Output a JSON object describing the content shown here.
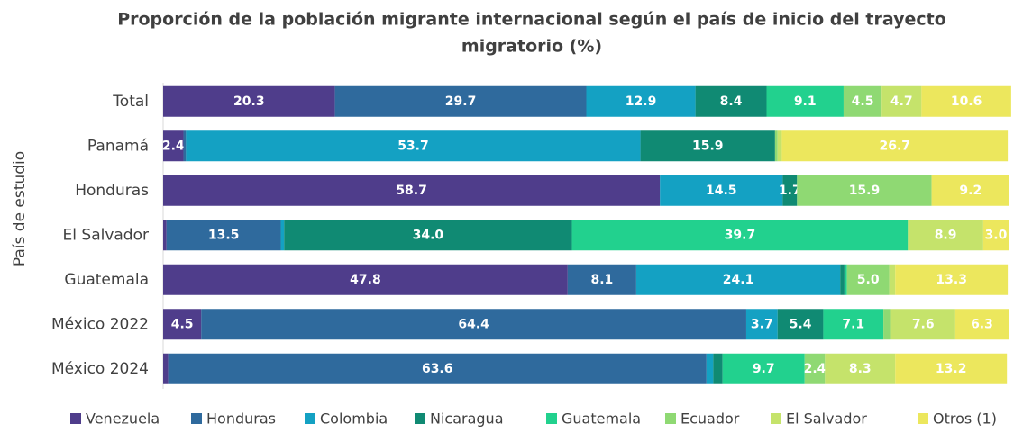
{
  "chart_data": {
    "type": "stacked_barh",
    "title": [
      "Proporción de la población migrante internacional según el país de inicio del trayecto",
      "migratorio (%)"
    ],
    "y_label": "País de estudio",
    "categories": [
      "Total",
      "Panamá",
      "Honduras",
      "El Salvador",
      "Guatemala",
      "México 2022",
      "México 2024"
    ],
    "xlim": [
      0,
      100
    ],
    "series": [
      {
        "name": "Venezuela",
        "color": "#4f3d8b",
        "values": [
          20.3,
          2.4,
          58.7,
          0.4,
          47.8,
          4.5,
          0.6
        ],
        "value_labels": [
          "20.3",
          "2.4",
          "58.7",
          null,
          "47.8",
          "4.5",
          null
        ]
      },
      {
        "name": "Honduras",
        "color": "#2f6a9d",
        "values": [
          29.7,
          0.3,
          0,
          13.5,
          8.1,
          64.4,
          63.6
        ],
        "value_labels": [
          "29.7",
          null,
          null,
          "13.5",
          "8.1",
          "64.4",
          "63.6"
        ]
      },
      {
        "name": "Colombia",
        "color": "#14a1c3",
        "values": [
          12.9,
          53.7,
          14.5,
          0.4,
          24.1,
          3.7,
          0.8
        ],
        "value_labels": [
          "12.9",
          "53.7",
          "14.5",
          null,
          "24.1",
          "3.7",
          null
        ]
      },
      {
        "name": "Nicaragua",
        "color": "#108a73",
        "values": [
          8.4,
          15.9,
          1.7,
          34.0,
          0.5,
          5.4,
          1.1
        ],
        "value_labels": [
          "8.4",
          "15.9",
          "1.7",
          "34.0",
          null,
          "5.4",
          null
        ]
      },
      {
        "name": "Guatemala",
        "color": "#22d18e",
        "values": [
          9.1,
          0,
          0,
          39.7,
          0.3,
          7.1,
          9.7
        ],
        "value_labels": [
          "9.1",
          null,
          null,
          "39.7",
          null,
          "7.1",
          "9.7"
        ]
      },
      {
        "name": "Ecuador",
        "color": "#8fd973",
        "values": [
          4.5,
          0.3,
          15.9,
          0,
          5.0,
          0.9,
          2.4
        ],
        "value_labels": [
          "4.5",
          null,
          "15.9",
          null,
          "5.0",
          null,
          "2.4"
        ]
      },
      {
        "name": "El Salvador",
        "color": "#c5e36b",
        "values": [
          4.7,
          0.5,
          0,
          8.9,
          0.7,
          7.6,
          8.3
        ],
        "value_labels": [
          "4.7",
          null,
          null,
          "8.9",
          null,
          "7.6",
          "8.3"
        ]
      },
      {
        "name": "Otros (1)",
        "color": "#ece75d",
        "values": [
          10.6,
          26.7,
          9.2,
          3.0,
          13.3,
          6.3,
          13.2
        ],
        "value_labels": [
          "10.6",
          "26.7",
          "9.2",
          "3.0",
          "13.3",
          "6.3",
          "13.2"
        ]
      }
    ]
  }
}
